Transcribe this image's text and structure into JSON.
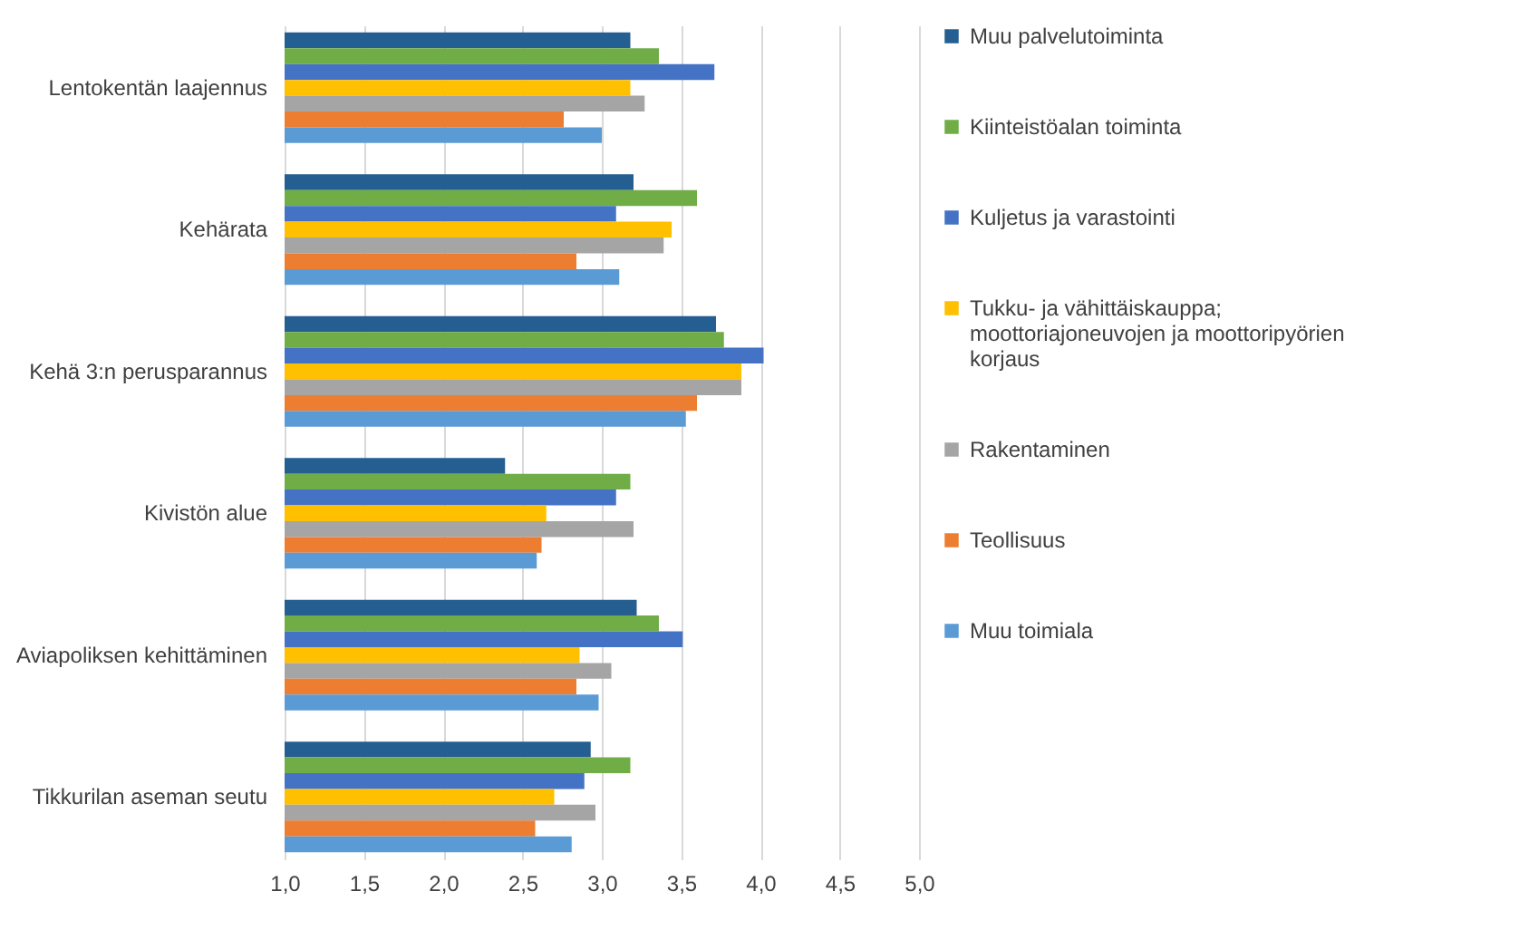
{
  "chart_data": {
    "type": "bar",
    "orientation": "horizontal",
    "categories": [
      "Lentokentän laajennus",
      "Kehärata",
      "Kehä 3:n perusparannus",
      "Kivistön alue",
      "Aviapoliksen kehittäminen",
      "Tikkurilan aseman seutu"
    ],
    "series": [
      {
        "name": "Muu palvelutoiminta",
        "color": "#255e91",
        "values": [
          3.18,
          3.2,
          3.72,
          2.39,
          3.22,
          2.93
        ]
      },
      {
        "name": "Kiinteistöalan toiminta",
        "color": "#70ad47",
        "values": [
          3.36,
          3.6,
          3.77,
          3.18,
          3.36,
          3.18
        ]
      },
      {
        "name": "Kuljetus ja varastointi",
        "color": "#4472c4",
        "values": [
          3.71,
          3.09,
          4.02,
          3.09,
          3.51,
          2.89
        ]
      },
      {
        "name": "Tukku- ja vähittäiskauppa; moottoriajoneuvojen ja moottoripyörien korjaus",
        "color": "#ffc000",
        "values": [
          3.18,
          3.44,
          3.88,
          2.65,
          2.86,
          2.7
        ]
      },
      {
        "name": "Rakentaminen",
        "color": "#a5a5a5",
        "values": [
          3.27,
          3.39,
          3.88,
          3.2,
          3.06,
          2.96
        ]
      },
      {
        "name": "Teollisuus",
        "color": "#ed7d31",
        "values": [
          2.76,
          2.84,
          3.6,
          2.62,
          2.84,
          2.58
        ]
      },
      {
        "name": "Muu toimiala",
        "color": "#5b9bd5",
        "values": [
          3.0,
          3.11,
          3.53,
          2.59,
          2.98,
          2.81
        ]
      }
    ],
    "xlim": [
      1,
      5
    ],
    "xticks": [
      {
        "value": 1,
        "label": "1,0"
      },
      {
        "value": 1.5,
        "label": "1,5"
      },
      {
        "value": 2,
        "label": "2,0"
      },
      {
        "value": 2.5,
        "label": "2,5"
      },
      {
        "value": 3,
        "label": "3,0"
      },
      {
        "value": 3.5,
        "label": "3,5"
      },
      {
        "value": 4,
        "label": "4,0"
      },
      {
        "value": 4.5,
        "label": "4,5"
      },
      {
        "value": 5,
        "label": "5,0"
      }
    ],
    "grid": "x",
    "legend": "right"
  }
}
